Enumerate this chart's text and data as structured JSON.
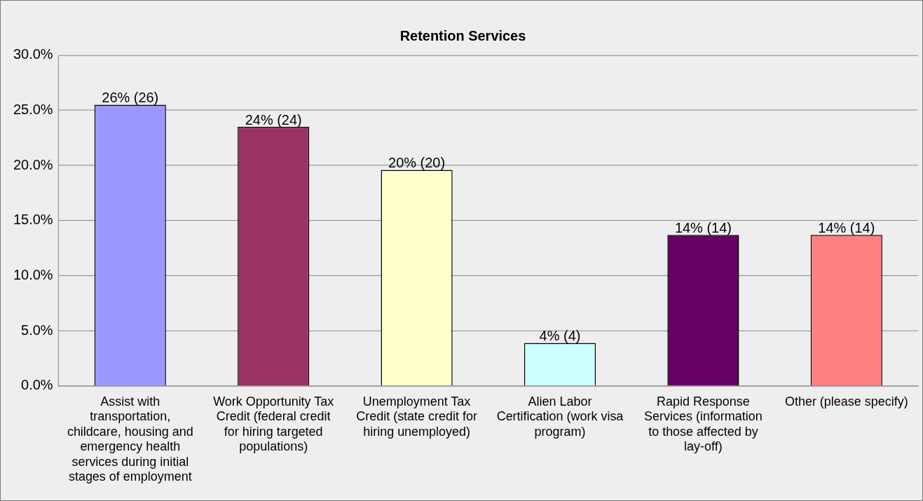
{
  "chart_data": {
    "type": "bar",
    "title": "Retention Services",
    "categories": [
      "Assist with transportation, childcare, housing and emergency health services during initial stages of employment",
      "Work Opportunity Tax Credit (federal credit for hiring targeted populations)",
      "Unemployment Tax Credit (state credit for hiring unemployed)",
      "Alien Labor Certification (work visa program)",
      "Rapid Response Services (information to those affected by lay-off)",
      "Other (please specify)"
    ],
    "values": [
      25.5,
      23.5,
      19.6,
      3.9,
      13.7,
      13.7
    ],
    "value_labels": [
      "26% (26)",
      "24% (24)",
      "20% (20)",
      "4% (4)",
      "14% (14)",
      "14% (14)"
    ],
    "colors": [
      "#9999ff",
      "#993366",
      "#ffffcc",
      "#ccffff",
      "#660066",
      "#ff8080"
    ],
    "ylim": [
      0,
      30
    ],
    "yticks": [
      {
        "value": 0,
        "label": "0.0%"
      },
      {
        "value": 5,
        "label": "5.0%"
      },
      {
        "value": 10,
        "label": "10.0%"
      },
      {
        "value": 15,
        "label": "15.0%"
      },
      {
        "value": 20,
        "label": "20.0%"
      },
      {
        "value": 25,
        "label": "25.0%"
      },
      {
        "value": 30,
        "label": "30.0%"
      }
    ],
    "grid": "y",
    "legend": false
  }
}
